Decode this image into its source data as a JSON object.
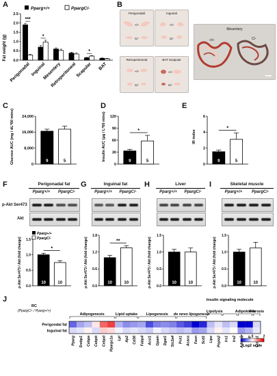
{
  "colors": {
    "wt": "#000000",
    "ko": "#ffffff",
    "sig": "#000000",
    "photo_bg": "#ece4df",
    "mesentery_bg": "#d8d4cf",
    "tissue": "#f4c9bf",
    "vessel": "#b23a2f"
  },
  "panels": {
    "A": "A",
    "B": "B",
    "C": "C",
    "D": "D",
    "E": "E",
    "F": "F",
    "G": "G",
    "H": "H",
    "I": "I",
    "J": "J"
  },
  "legend": {
    "wt": "Pparg+/+",
    "ko": "PpargC/-"
  },
  "genotype_headers": {
    "wt": "Pparg+/+",
    "ko": "PpargC/-"
  },
  "panelA": {
    "ylabel": "Fat weight (g)",
    "yticks": [
      "0.0",
      "0.5",
      "1.0",
      "1.5",
      "2.0",
      "2.5"
    ],
    "categories": [
      "Perigonadal",
      "Inguinal",
      "Mesentery",
      "Retroperitoneal",
      "Scapular",
      "BAT"
    ],
    "sig": [
      "***",
      "*",
      "",
      "",
      "*",
      ""
    ]
  },
  "panelB": {
    "photos": [
      {
        "label": "Perigonadal",
        "wt_mark": "+/+",
        "ko_mark": "C/-"
      },
      {
        "label": "Inguinal",
        "wt_mark": "+/+",
        "ko_mark": "C/-"
      },
      {
        "label": "Retroperitoneal",
        "wt_mark": "+/+",
        "ko_mark": "C/-"
      },
      {
        "label": "BAT    Scapular",
        "wt_mark": "+/+",
        "ko_mark": "C/-"
      }
    ],
    "mesentery": {
      "label": "Mesentery",
      "wt_mark": "+/+",
      "ko_mark": "C/-"
    }
  },
  "panelC": {
    "ylabel": "Glucose AUC (mg / dL*60 mins)",
    "yticks": [
      "0",
      "8,000",
      "16,000",
      "24,000"
    ],
    "n": [
      "9",
      "5"
    ],
    "sig": ""
  },
  "panelD": {
    "ylabel": "Insulin AUC (μg / L*60 mins)",
    "yticks": [
      "0",
      "30",
      "60",
      "90",
      "120"
    ],
    "n": [
      "9",
      "5"
    ],
    "sig": "*"
  },
  "panelE": {
    "ylabel": "IR index",
    "yticks": [
      "0",
      "2",
      "4",
      "6"
    ],
    "n": [
      "9",
      "5"
    ],
    "sig": "*"
  },
  "panelF": {
    "title": "Perigonadal fat",
    "blot_labels": [
      "p-Akt Ser473",
      "Akt"
    ],
    "ylabel": "p-Akt Ser473 / Akt (fold change)",
    "yticks": [
      "0.0",
      "0.5",
      "1.0",
      "1.5"
    ],
    "n": [
      "10",
      "10"
    ],
    "sig": "*"
  },
  "panelG": {
    "title": "Inguinal fat",
    "ylabel": "p-Akt Ser473 / Akt (fold change)",
    "yticks": [
      "0.0",
      "0.6",
      "1.2",
      "1.8"
    ],
    "n": [
      "10",
      "10"
    ],
    "sig": "**"
  },
  "panelH": {
    "title": "Liver",
    "ylabel": "p-Akt Ser473 / Akt (fold change)",
    "yticks": [
      "0.0",
      "0.5",
      "1.0",
      "1.5"
    ],
    "n": [
      "10",
      "10"
    ],
    "sig": ""
  },
  "panelI": {
    "title": "Skeletal muscle",
    "ylabel": "p-Akt Ser473 / Akt (fold change)",
    "yticks": [
      "0.0",
      "0.5",
      "1.0",
      "1.5"
    ],
    "n": [
      "10",
      "10"
    ],
    "sig": ""
  },
  "panelJ": {
    "row_title": "RC",
    "row_title2": "(PpargC/- / Pparg+/+)",
    "rows": [
      "Perigondal fat",
      "Inguinal fat"
    ],
    "groups": [
      "Adipogenesis",
      "Lipid uptake",
      "Lipogenesis",
      "de novo lipogenesis",
      "Lipolysis",
      "Insulin signaling molecule",
      "Adipokines",
      "Fibrosis"
    ],
    "genes": [
      "Pparg",
      "Srebp1",
      "Cebpa",
      "Cebpb",
      "Cebpd",
      "Ppargc1a",
      "Lpl",
      "Ap2",
      "Cd36",
      "Fabp4",
      "Acsl1",
      "Gpam",
      "Dgat1",
      "Slc2a4",
      "Pck1",
      "Acaca",
      "Fasn",
      "Scd1",
      "Lipe",
      "Pnpla2",
      "Irs1",
      "Irs2",
      "Adipoq",
      "Lep",
      "Col1a1"
    ],
    "scale_title": "Log2 scale",
    "scale_ticks": [
      "-2",
      "0",
      "2"
    ]
  },
  "chart_data": [
    {
      "type": "bar",
      "panel": "A",
      "title": "",
      "ylabel": "Fat weight (g)",
      "ylim": [
        0,
        2.5
      ],
      "categories": [
        "Perigonadal",
        "Inguinal",
        "Mesentery",
        "Retroperitoneal",
        "Scapular",
        "BAT"
      ],
      "series": [
        {
          "name": "Pparg+/+",
          "values": [
            1.9,
            0.7,
            0.6,
            0.38,
            0.13,
            0.1
          ],
          "errors": [
            0.08,
            0.08,
            0.06,
            0.05,
            0.02,
            0.02
          ]
        },
        {
          "name": "PpargC/-",
          "values": [
            0.28,
            0.97,
            0.52,
            0.33,
            0.22,
            0.08
          ],
          "errors": [
            0.04,
            0.1,
            0.07,
            0.05,
            0.03,
            0.02
          ]
        }
      ]
    },
    {
      "type": "bar",
      "panel": "C",
      "ylabel": "Glucose AUC (mg / dL*60 mins)",
      "ylim": [
        0,
        24000
      ],
      "series": [
        {
          "name": "Pparg+/+",
          "values": [
            16500
          ],
          "errors": [
            1000
          ]
        },
        {
          "name": "PpargC/-",
          "values": [
            17500
          ],
          "errors": [
            1500
          ]
        }
      ]
    },
    {
      "type": "bar",
      "panel": "D",
      "ylabel": "Insulin AUC (μg / L*60 mins)",
      "ylim": [
        0,
        120
      ],
      "series": [
        {
          "name": "Pparg+/+",
          "values": [
            33
          ],
          "errors": [
            4
          ]
        },
        {
          "name": "PpargC/-",
          "values": [
            58
          ],
          "errors": [
            14
          ]
        }
      ]
    },
    {
      "type": "bar",
      "panel": "E",
      "ylabel": "IR index",
      "ylim": [
        0,
        6
      ],
      "series": [
        {
          "name": "Pparg+/+",
          "values": [
            1.55
          ],
          "errors": [
            0.2
          ]
        },
        {
          "name": "PpargC/-",
          "values": [
            3.1
          ],
          "errors": [
            0.8
          ]
        }
      ]
    },
    {
      "type": "bar",
      "panel": "F",
      "ylabel": "p-Akt Ser473 / Akt (fold change)",
      "ylim": [
        0,
        1.5
      ],
      "series": [
        {
          "name": "Pparg+/+",
          "values": [
            1.0
          ],
          "errors": [
            0.05
          ]
        },
        {
          "name": "PpargC/-",
          "values": [
            0.75
          ],
          "errors": [
            0.06
          ]
        }
      ]
    },
    {
      "type": "bar",
      "panel": "G",
      "ylabel": "p-Akt Ser473 / Akt (fold change)",
      "ylim": [
        0,
        1.8
      ],
      "series": [
        {
          "name": "Pparg+/+",
          "values": [
            1.0
          ],
          "errors": [
            0.08
          ]
        },
        {
          "name": "PpargC/-",
          "values": [
            1.35
          ],
          "errors": [
            0.07
          ]
        }
      ]
    },
    {
      "type": "bar",
      "panel": "H",
      "ylabel": "p-Akt Ser473 / Akt (fold change)",
      "ylim": [
        0,
        1.5
      ],
      "series": [
        {
          "name": "Pparg+/+",
          "values": [
            1.0
          ],
          "errors": [
            0.08
          ]
        },
        {
          "name": "PpargC/-",
          "values": [
            1.0
          ],
          "errors": [
            0.12
          ]
        }
      ]
    },
    {
      "type": "bar",
      "panel": "I",
      "ylabel": "p-Akt Ser473 / Akt (fold change)",
      "ylim": [
        0,
        1.5
      ],
      "series": [
        {
          "name": "Pparg+/+",
          "values": [
            1.0
          ],
          "errors": [
            0.08
          ]
        },
        {
          "name": "PpargC/-",
          "values": [
            1.12
          ],
          "errors": [
            0.17
          ]
        }
      ]
    },
    {
      "type": "heatmap",
      "panel": "J",
      "zlim": [
        -2,
        2
      ],
      "rows": [
        "Perigondal fat",
        "Inguinal fat"
      ],
      "columns": [
        "Pparg",
        "Srebp1",
        "Cebpa",
        "Cebpb",
        "Cebpd",
        "Ppargc1a",
        "Lpl",
        "Ap2",
        "Cd36",
        "Fabp4",
        "Acsl1",
        "Gpam",
        "Dgat1",
        "Slc2a4",
        "Pck1",
        "Acaca",
        "Fasn",
        "Scd1",
        "Lipe",
        "Pnpla2",
        "Irs1",
        "Irs2",
        "Adipoq",
        "Lep",
        "Col1a1"
      ],
      "values": [
        [
          -1.2,
          -0.7,
          -0.5,
          0.2,
          1.2,
          1.5,
          -0.6,
          -0.9,
          -0.8,
          -0.7,
          -1.4,
          -1.0,
          -0.9,
          -1.0,
          -1.3,
          -1.5,
          -2.0,
          -1.7,
          -0.5,
          -0.2,
          -0.5,
          -0.3,
          -2.0,
          -2.0,
          -0.3
        ],
        [
          -0.3,
          -0.2,
          0.1,
          -0.3,
          0.4,
          0.3,
          -0.1,
          -0.3,
          -0.2,
          -0.3,
          -0.4,
          -0.1,
          -0.3,
          -0.4,
          -0.5,
          -0.4,
          -0.8,
          -0.7,
          -0.3,
          0.1,
          -0.2,
          0.0,
          -0.8,
          -0.6,
          -0.2
        ]
      ]
    }
  ]
}
